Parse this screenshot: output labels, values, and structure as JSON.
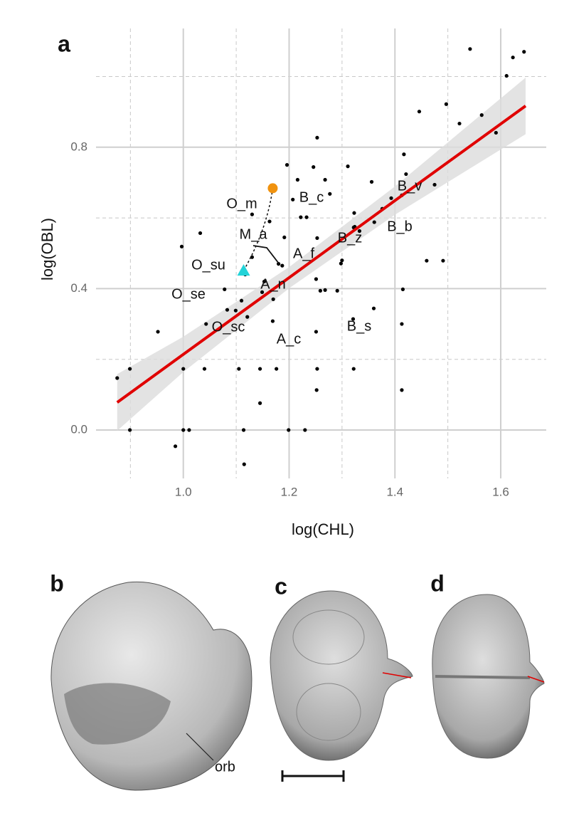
{
  "chart_data": {
    "type": "scatter",
    "panel_label": "a",
    "x_label": "log(CHL)",
    "y_label": "log(OBL)",
    "xlim": [
      0.835,
      1.686
    ],
    "ylim": [
      -0.137,
      1.136
    ],
    "xticks": [
      {
        "value": 1,
        "label": "1.0"
      },
      1.2,
      1.4,
      1.6
    ],
    "yticks": [
      {
        "value": 0,
        "label": "0.0"
      },
      0.4,
      0.8
    ],
    "xminor": [
      0.9,
      1.1,
      1.3,
      1.5
    ],
    "yminor": [
      0.2,
      0.6,
      1.0
    ],
    "grid": true,
    "color": "#000000",
    "x": [
      0.875,
      0.899,
      0.899,
      0.952,
      0.985,
      1.0,
      0.997,
      1.0,
      1.011,
      1.032,
      1.04,
      1.043,
      1.078,
      1.083,
      1.099,
      1.11,
      1.117,
      1.13,
      1.121,
      1.13,
      1.105,
      1.114,
      1.115,
      1.145,
      1.145,
      1.149,
      1.153,
      1.163,
      1.169,
      1.17,
      1.176,
      1.18,
      1.187,
      1.191,
      1.196,
      1.199,
      1.207,
      1.216,
      1.222,
      1.23,
      1.233,
      1.246,
      1.251,
      1.252,
      1.253,
      1.251,
      1.268,
      1.277,
      1.253,
      1.253,
      1.259,
      1.268,
      1.291,
      1.298,
      1.3,
      1.311,
      1.323,
      1.322,
      1.324,
      1.356,
      1.333,
      1.321,
      1.322,
      1.361,
      1.36,
      1.376,
      1.393,
      1.413,
      1.417,
      1.415,
      1.413,
      1.413,
      1.421,
      1.446,
      1.46,
      1.475,
      1.491,
      1.497,
      1.522,
      1.542,
      1.564,
      1.591,
      1.611,
      1.623,
      1.644
    ],
    "y": [
      0.147,
      0.173,
      0.0,
      0.278,
      -0.046,
      0.173,
      0.519,
      0.0,
      0.0,
      0.557,
      0.173,
      0.3,
      0.398,
      0.34,
      0.338,
      0.366,
      0.44,
      0.489,
      0.32,
      0.61,
      0.173,
      0.0,
      -0.097,
      0.076,
      0.173,
      0.39,
      0.42,
      0.59,
      0.308,
      0.37,
      0.173,
      0.47,
      0.465,
      0.545,
      0.75,
      0.0,
      0.652,
      0.708,
      0.602,
      0.0,
      0.602,
      0.744,
      0.427,
      0.113,
      0.173,
      0.278,
      0.708,
      0.668,
      0.543,
      0.827,
      0.394,
      0.396,
      0.394,
      0.471,
      0.48,
      0.746,
      0.614,
      0.573,
      0.575,
      0.702,
      0.563,
      0.314,
      0.173,
      0.588,
      0.344,
      0.626,
      0.656,
      0.664,
      0.78,
      0.398,
      0.113,
      0.3,
      0.724,
      0.901,
      0.479,
      0.694,
      0.479,
      0.922,
      0.867,
      1.078,
      0.891,
      0.841,
      1.002,
      1.054,
      1.07
    ],
    "highlights": [
      {
        "x": 1.169,
        "y": 0.684,
        "color": "#f0920e",
        "shape": "circle"
      },
      {
        "x": 1.114,
        "y": 0.451,
        "color": "#22d3d8",
        "shape": "triangle"
      }
    ],
    "fit": {
      "color": "#e00000",
      "band_color": "#dcdcdc",
      "x": [
        0.875,
        1.0,
        1.2,
        1.4,
        1.647
      ],
      "y": [
        0.078,
        0.214,
        0.431,
        0.649,
        0.917
      ],
      "lower": [
        -0.002,
        0.164,
        0.401,
        0.609,
        0.837
      ],
      "upper": [
        0.158,
        0.264,
        0.461,
        0.689,
        0.997
      ]
    },
    "annotations": [
      "O_m",
      "B_c",
      "M_a",
      "A_f",
      "B_z",
      "B_v",
      "B_b",
      "O_su",
      "A_n",
      "O_se",
      "O_sc",
      "A_c",
      "B_s"
    ]
  },
  "figure": {
    "panel_labels": [
      "b",
      "c",
      "d"
    ],
    "callout": "orb"
  }
}
